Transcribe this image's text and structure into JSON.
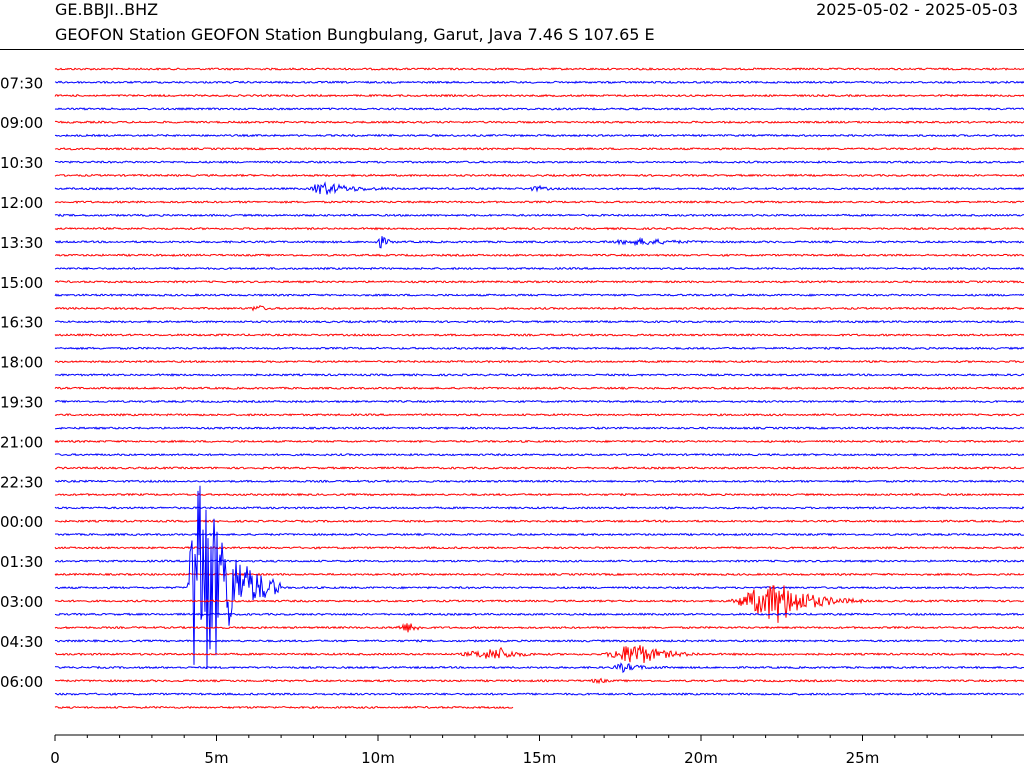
{
  "header": {
    "channel_code": "GE.BBJI..BHZ",
    "station_line": "GEOFON Station GEOFON Station Bungbulang, Garut, Java  7.46 S 107.65 E",
    "date_range": "2025-05-02 - 2025-05-03"
  },
  "chart_data": {
    "type": "line",
    "title": "",
    "xlabel": "",
    "ylabel": "",
    "xlim": [
      0,
      30
    ],
    "x_ticks": [
      {
        "value": 0,
        "label": "0"
      },
      {
        "value": 5,
        "label": "5m"
      },
      {
        "value": 10,
        "label": "10m"
      },
      {
        "value": 15,
        "label": "15m"
      },
      {
        "value": 20,
        "label": "20m"
      },
      {
        "value": 25,
        "label": "25m"
      }
    ],
    "x_minor_step": 1,
    "y_labels": [
      "07:30",
      "09:00",
      "10:30",
      "12:00",
      "13:30",
      "15:00",
      "16:30",
      "18:00",
      "19:30",
      "21:00",
      "22:30",
      "00:00",
      "01:30",
      "03:00",
      "04:30",
      "06:00"
    ],
    "trace_count": 49,
    "trace_colors": [
      "#ff0000",
      "#0000ff"
    ],
    "last_trace_end_minute": 14.2,
    "events": [
      {
        "trace": 9,
        "start": 7.9,
        "peak": 8.2,
        "end": 10.5,
        "amplitude": 7
      },
      {
        "trace": 9,
        "start": 14.5,
        "peak": 15.0,
        "end": 15.6,
        "amplitude": 2
      },
      {
        "trace": 13,
        "start": 9.9,
        "peak": 10.1,
        "end": 10.6,
        "amplitude": 6
      },
      {
        "trace": 13,
        "start": 17.0,
        "peak": 18.3,
        "end": 20.3,
        "amplitude": 3
      },
      {
        "trace": 18,
        "start": 6.0,
        "peak": 6.3,
        "end": 6.8,
        "amplitude": 3
      },
      {
        "trace": 39,
        "start": 4.1,
        "peak": 4.4,
        "end": 7.0,
        "amplitude": 140
      },
      {
        "trace": 40,
        "start": 20.9,
        "peak": 22.4,
        "end": 25.0,
        "amplitude": 22
      },
      {
        "trace": 42,
        "start": 10.5,
        "peak": 11.0,
        "end": 11.6,
        "amplitude": 5
      },
      {
        "trace": 44,
        "start": 12.5,
        "peak": 13.8,
        "end": 15.0,
        "amplitude": 6
      },
      {
        "trace": 44,
        "start": 17.0,
        "peak": 18.0,
        "end": 20.0,
        "amplitude": 12
      },
      {
        "trace": 45,
        "start": 17.2,
        "peak": 17.6,
        "end": 19.0,
        "amplitude": 4
      },
      {
        "trace": 46,
        "start": 16.5,
        "peak": 16.9,
        "end": 17.3,
        "amplitude": 2
      }
    ]
  }
}
